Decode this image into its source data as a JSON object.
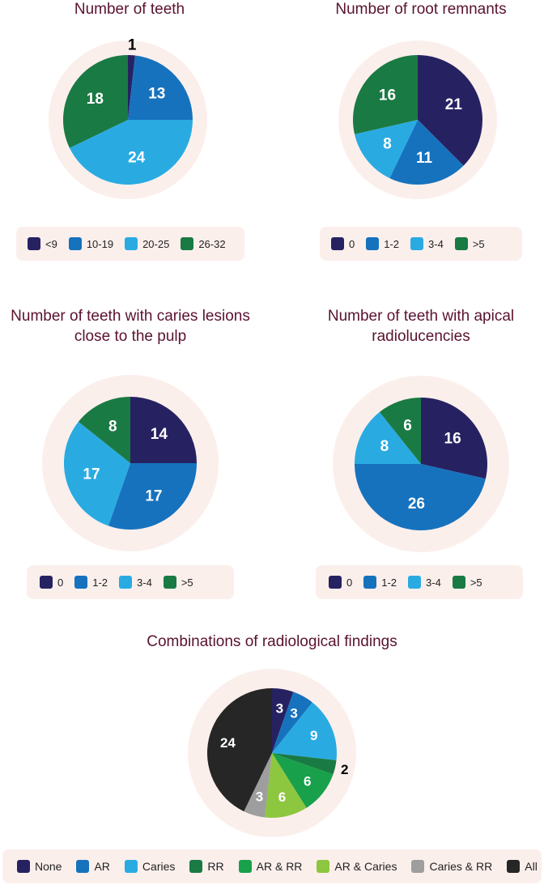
{
  "colors": {
    "navy": "#262262",
    "blue": "#1672bd",
    "light_blue": "#29abe2",
    "green": "#1a7a43",
    "mid_green": "#18a04a",
    "lime": "#8dc63f",
    "gray": "#9e9e9e",
    "black": "#262626",
    "halo": "#fbefec",
    "title": "#5a1230"
  },
  "chart_data": [
    {
      "type": "pie",
      "title": "Number of teeth",
      "categories": [
        "<9",
        "10-19",
        "20-25",
        "26-32"
      ],
      "values": [
        1,
        13,
        24,
        18
      ],
      "colors": [
        "#262262",
        "#1672bd",
        "#29abe2",
        "#1a7a43"
      ],
      "legend": "bottom"
    },
    {
      "type": "pie",
      "title": "Number of root remnants",
      "categories": [
        "0",
        "1-2",
        "3-4",
        ">5"
      ],
      "values": [
        21,
        11,
        8,
        16
      ],
      "colors": [
        "#262262",
        "#1672bd",
        "#29abe2",
        "#1a7a43"
      ],
      "legend": "bottom"
    },
    {
      "type": "pie",
      "title_lines": [
        "Number of teeth with caries lesions",
        "close to the pulp"
      ],
      "categories": [
        "0",
        "1-2",
        "3-4",
        ">5"
      ],
      "values": [
        14,
        17,
        17,
        8
      ],
      "colors": [
        "#262262",
        "#1672bd",
        "#29abe2",
        "#1a7a43"
      ],
      "legend": "bottom"
    },
    {
      "type": "pie",
      "title_lines": [
        "Number of teeth with apical",
        "radiolucencies"
      ],
      "categories": [
        "0",
        "1-2",
        "3-4",
        ">5"
      ],
      "values": [
        16,
        26,
        8,
        6
      ],
      "colors": [
        "#262262",
        "#1672bd",
        "#29abe2",
        "#1a7a43"
      ],
      "legend": "bottom"
    },
    {
      "type": "pie",
      "title": "Combinations of radiological findings",
      "categories": [
        "None",
        "AR",
        "Caries",
        "RR",
        "AR & RR",
        "AR & Caries",
        "Caries & RR",
        "All"
      ],
      "values": [
        3,
        3,
        9,
        2,
        6,
        6,
        3,
        24
      ],
      "colors": [
        "#262262",
        "#1672bd",
        "#29abe2",
        "#1a7a43",
        "#18a04a",
        "#8dc63f",
        "#9e9e9e",
        "#262626"
      ],
      "legend": "bottom"
    }
  ]
}
